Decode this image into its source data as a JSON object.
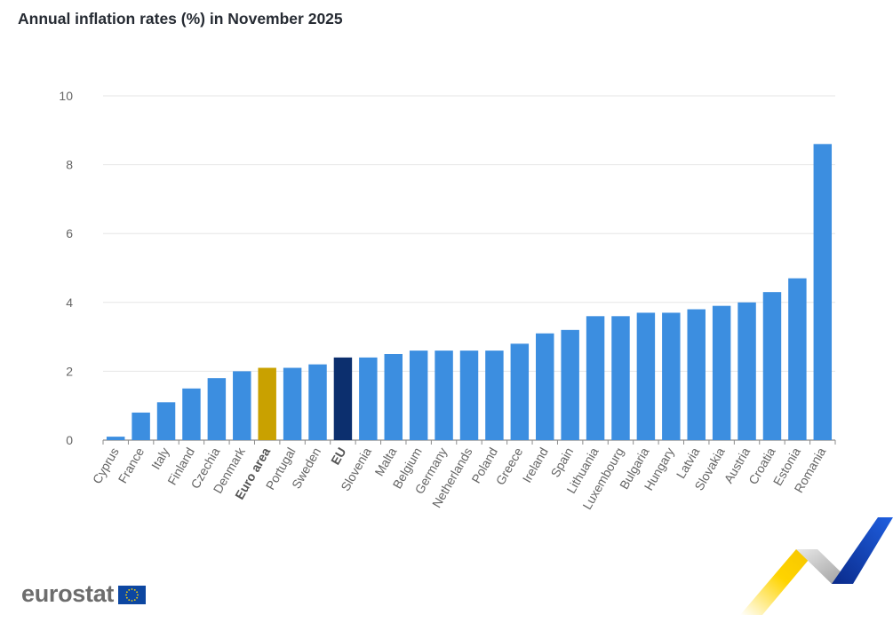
{
  "title": "Annual inflation rates (%) in November 2025",
  "brand": "eurostat",
  "chart_data": {
    "type": "bar",
    "title": "Annual inflation rates (%) in November 2025",
    "xlabel": "",
    "ylabel": "",
    "ylim": [
      0,
      10
    ],
    "yticks": [
      0,
      2,
      4,
      6,
      8,
      10
    ],
    "grid": true,
    "categories": [
      "Cyprus",
      "France",
      "Italy",
      "Finland",
      "Czechia",
      "Denmark",
      "Euro area",
      "Portugal",
      "Sweden",
      "EU",
      "Slovenia",
      "Malta",
      "Belgium",
      "Germany",
      "Netherlands",
      "Poland",
      "Greece",
      "Ireland",
      "Spain",
      "Lithuania",
      "Luxembourg",
      "Bulgaria",
      "Hungary",
      "Latvia",
      "Slovakia",
      "Austria",
      "Croatia",
      "Estonia",
      "Romania"
    ],
    "values": [
      0.1,
      0.8,
      1.1,
      1.5,
      1.8,
      2.0,
      2.1,
      2.1,
      2.2,
      2.4,
      2.4,
      2.5,
      2.6,
      2.6,
      2.6,
      2.6,
      2.8,
      3.1,
      3.2,
      3.6,
      3.6,
      3.7,
      3.7,
      3.8,
      3.9,
      4.0,
      4.3,
      4.7,
      8.6
    ],
    "highlight": {
      "Euro area": "#c9a100",
      "EU": "#0c2f6e"
    },
    "bold_categories": [
      "Euro area",
      "EU"
    ],
    "colors": {
      "bar": "#3c8ee0",
      "grid": "#e6e6e6",
      "axis": "#8c8c8c",
      "tick_text": "#666666"
    }
  }
}
